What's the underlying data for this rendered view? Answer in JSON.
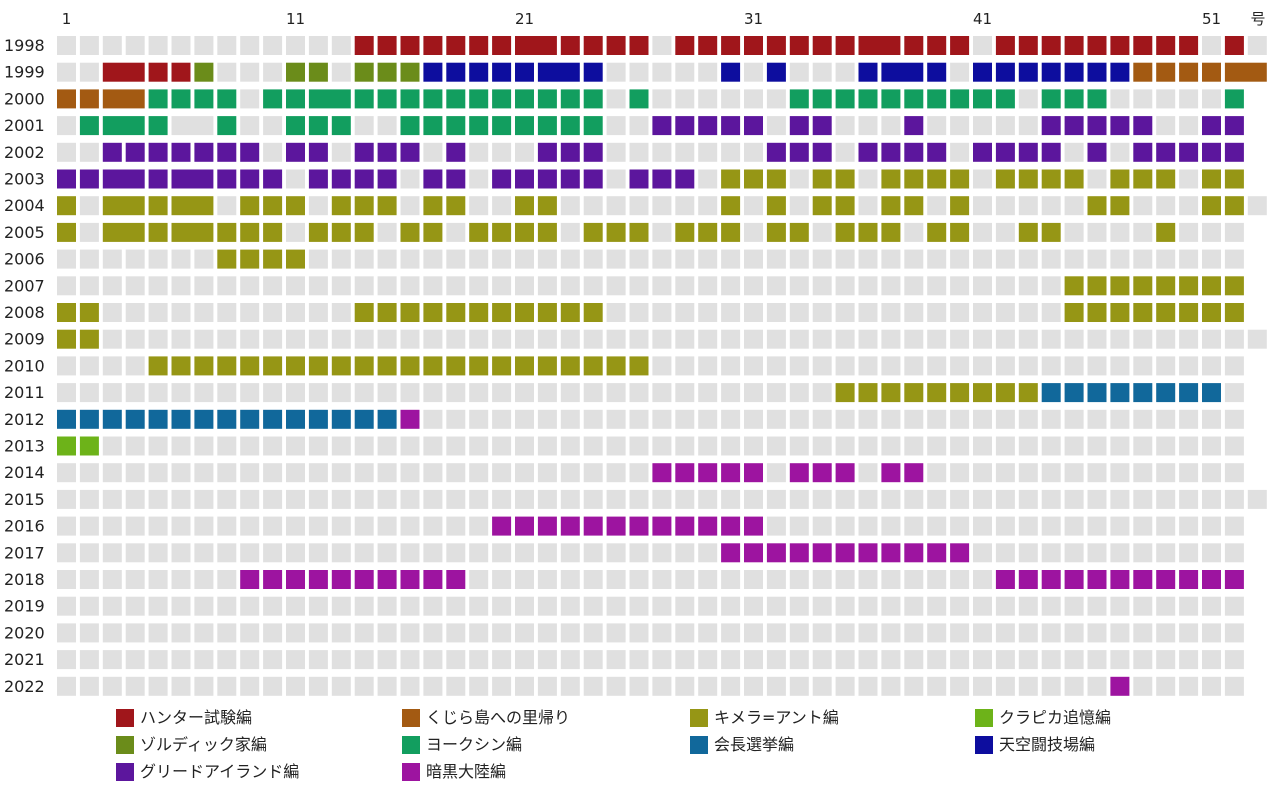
{
  "chart_data": {
    "type": "heatmap",
    "title": "",
    "x_unit_label": "号",
    "x_tick_labels": [
      "1",
      "11",
      "21",
      "31",
      "41",
      "51"
    ],
    "x_ticks": [
      1,
      11,
      21,
      31,
      41,
      51
    ],
    "years": [
      "1998",
      "1999",
      "2000",
      "2001",
      "2002",
      "2003",
      "2004",
      "2005",
      "2006",
      "2007",
      "2008",
      "2009",
      "2010",
      "2011",
      "2012",
      "2013",
      "2014",
      "2015",
      "2016",
      "2017",
      "2018",
      "2019",
      "2020",
      "2021",
      "2022"
    ],
    "issue_range": [
      1,
      53
    ],
    "issue_counts": {
      "1998": 53,
      "2004": 53,
      "2009": 53,
      "2015": 53
    },
    "merged_pairs": {
      "1998": [
        [
          21,
          22
        ],
        [
          36,
          37
        ]
      ],
      "1999": [
        [
          3,
          4
        ],
        [
          22,
          23
        ],
        [
          37,
          38
        ],
        [
          52,
          53
        ]
      ],
      "2000": [
        [
          3,
          4
        ],
        [
          12,
          13
        ]
      ],
      "2001": [
        [
          3,
          4
        ],
        [
          6,
          7
        ]
      ],
      "2003": [
        [
          3,
          4
        ],
        [
          6,
          7
        ]
      ],
      "2004": [
        [
          3,
          4
        ],
        [
          6,
          7
        ]
      ],
      "2005": [
        [
          3,
          4
        ],
        [
          6,
          7
        ]
      ]
    },
    "arcs": [
      {
        "name": "ハンター試験編",
        "color": "#a0161b"
      },
      {
        "name": "くじら島への里帰り",
        "color": "#a35a12"
      },
      {
        "name": "キメラ=アント編",
        "color": "#969615"
      },
      {
        "name": "クラピカ追憶編",
        "color": "#6db319"
      },
      {
        "name": "ゾルディック家編",
        "color": "#6b8c1a"
      },
      {
        "name": "ヨークシン編",
        "color": "#129e5f"
      },
      {
        "name": "会長選挙編",
        "color": "#11689b"
      },
      {
        "name": "天空闘技場編",
        "color": "#0d0d9e"
      },
      {
        "name": "グリードアイランド編",
        "color": "#5c169d"
      },
      {
        "name": "暗黒大陸編",
        "color": "#9d14a0"
      }
    ],
    "published": {
      "1998": [
        [
          14,
          26,
          "ハンター試験編"
        ],
        [
          28,
          40,
          "ハンター試験編"
        ],
        [
          42,
          50,
          "ハンター試験編"
        ],
        [
          52,
          52,
          "ハンター試験編"
        ]
      ],
      "1999": [
        [
          3,
          6,
          "ハンター試験編"
        ],
        [
          7,
          7,
          "ゾルディック家編"
        ],
        [
          11,
          12,
          "ゾルディック家編"
        ],
        [
          14,
          16,
          "ゾルディック家編"
        ],
        [
          17,
          24,
          "天空闘技場編"
        ],
        [
          30,
          30,
          "天空闘技場編"
        ],
        [
          32,
          32,
          "天空闘技場編"
        ],
        [
          36,
          39,
          "天空闘技場編"
        ],
        [
          41,
          47,
          "天空闘技場編"
        ],
        [
          48,
          53,
          "くじら島への里帰り"
        ]
      ],
      "2000": [
        [
          1,
          4,
          "くじら島への里帰り"
        ],
        [
          5,
          8,
          "ヨークシン編"
        ],
        [
          10,
          24,
          "ヨークシン編"
        ],
        [
          26,
          26,
          "ヨークシン編"
        ],
        [
          33,
          42,
          "ヨークシン編"
        ],
        [
          44,
          46,
          "ヨークシン編"
        ],
        [
          52,
          52,
          "ヨークシン編"
        ]
      ],
      "2001": [
        [
          2,
          5,
          "ヨークシン編"
        ],
        [
          7,
          8,
          "ヨークシン編"
        ],
        [
          11,
          13,
          "ヨークシン編"
        ],
        [
          16,
          24,
          "ヨークシン編"
        ],
        [
          27,
          31,
          "グリードアイランド編"
        ],
        [
          33,
          34,
          "グリードアイランド編"
        ],
        [
          38,
          38,
          "グリードアイランド編"
        ],
        [
          44,
          48,
          "グリードアイランド編"
        ],
        [
          51,
          52,
          "グリードアイランド編"
        ]
      ],
      "2002": [
        [
          3,
          9,
          "グリードアイランド編"
        ],
        [
          11,
          12,
          "グリードアイランド編"
        ],
        [
          14,
          16,
          "グリードアイランド編"
        ],
        [
          18,
          18,
          "グリードアイランド編"
        ],
        [
          22,
          24,
          "グリードアイランド編"
        ],
        [
          32,
          34,
          "グリードアイランド編"
        ],
        [
          36,
          39,
          "グリードアイランド編"
        ],
        [
          41,
          44,
          "グリードアイランド編"
        ],
        [
          46,
          46,
          "グリードアイランド編"
        ],
        [
          48,
          52,
          "グリードアイランド編"
        ]
      ],
      "2003": [
        [
          1,
          10,
          "グリードアイランド編"
        ],
        [
          12,
          15,
          "グリードアイランド編"
        ],
        [
          17,
          18,
          "グリードアイランド編"
        ],
        [
          20,
          24,
          "グリードアイランド編"
        ],
        [
          26,
          28,
          "グリードアイランド編"
        ],
        [
          30,
          32,
          "キメラ=アント編"
        ],
        [
          34,
          35,
          "キメラ=アント編"
        ],
        [
          37,
          40,
          "キメラ=アント編"
        ],
        [
          42,
          45,
          "キメラ=アント編"
        ],
        [
          47,
          49,
          "キメラ=アント編"
        ],
        [
          51,
          52,
          "キメラ=アント編"
        ]
      ],
      "2004": [
        [
          1,
          1,
          "キメラ=アント編"
        ],
        [
          3,
          7,
          "キメラ=アント編"
        ],
        [
          9,
          11,
          "キメラ=アント編"
        ],
        [
          13,
          15,
          "キメラ=アント編"
        ],
        [
          17,
          18,
          "キメラ=アント編"
        ],
        [
          21,
          22,
          "キメラ=アント編"
        ],
        [
          30,
          30,
          "キメラ=アント編"
        ],
        [
          32,
          32,
          "キメラ=アント編"
        ],
        [
          34,
          35,
          "キメラ=アント編"
        ],
        [
          37,
          38,
          "キメラ=アント編"
        ],
        [
          40,
          40,
          "キメラ=アント編"
        ],
        [
          46,
          47,
          "キメラ=アント編"
        ],
        [
          51,
          52,
          "キメラ=アント編"
        ]
      ],
      "2005": [
        [
          1,
          1,
          "キメラ=アント編"
        ],
        [
          3,
          7,
          "キメラ=アント編"
        ],
        [
          8,
          10,
          "キメラ=アント編"
        ],
        [
          12,
          14,
          "キメラ=アント編"
        ],
        [
          16,
          17,
          "キメラ=アント編"
        ],
        [
          19,
          22,
          "キメラ=アント編"
        ],
        [
          24,
          26,
          "キメラ=アント編"
        ],
        [
          28,
          30,
          "キメラ=アント編"
        ],
        [
          32,
          33,
          "キメラ=アント編"
        ],
        [
          35,
          37,
          "キメラ=アント編"
        ],
        [
          39,
          40,
          "キメラ=アント編"
        ],
        [
          43,
          44,
          "キメラ=アント編"
        ],
        [
          49,
          49,
          "キメラ=アント編"
        ]
      ],
      "2006": [
        [
          8,
          11,
          "キメラ=アント編"
        ]
      ],
      "2007": [
        [
          45,
          52,
          "キメラ=アント編"
        ]
      ],
      "2008": [
        [
          1,
          2,
          "キメラ=アント編"
        ],
        [
          14,
          24,
          "キメラ=アント編"
        ],
        [
          45,
          52,
          "キメラ=アント編"
        ]
      ],
      "2009": [
        [
          1,
          2,
          "キメラ=アント編"
        ]
      ],
      "2010": [
        [
          5,
          26,
          "キメラ=アント編"
        ]
      ],
      "2011": [
        [
          35,
          43,
          "キメラ=アント編"
        ],
        [
          44,
          51,
          "会長選挙編"
        ]
      ],
      "2012": [
        [
          1,
          15,
          "会長選挙編"
        ],
        [
          16,
          16,
          "暗黒大陸編"
        ]
      ],
      "2013": [
        [
          1,
          2,
          "クラピカ追憶編"
        ]
      ],
      "2014": [
        [
          27,
          31,
          "暗黒大陸編"
        ],
        [
          33,
          35,
          "暗黒大陸編"
        ],
        [
          37,
          38,
          "暗黒大陸編"
        ]
      ],
      "2016": [
        [
          20,
          31,
          "暗黒大陸編"
        ]
      ],
      "2017": [
        [
          30,
          40,
          "暗黒大陸編"
        ]
      ],
      "2018": [
        [
          9,
          18,
          "暗黒大陸編"
        ],
        [
          42,
          52,
          "暗黒大陸編"
        ]
      ],
      "2022": [
        [
          47,
          47,
          "暗黒大陸編"
        ]
      ]
    },
    "empty_color": "#e0e0e0",
    "grid": false,
    "legend_position": "bottom"
  }
}
